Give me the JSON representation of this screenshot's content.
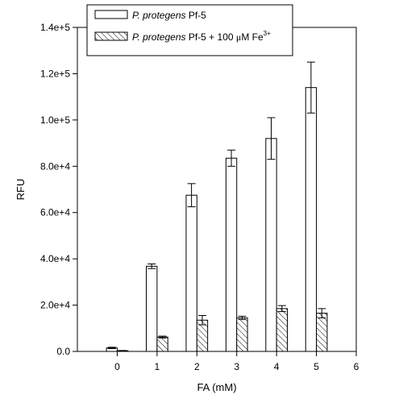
{
  "chart_data": {
    "type": "bar",
    "title": "",
    "xlabel": "FA (mM)",
    "ylabel": "RFU",
    "xlim": [
      -1,
      6
    ],
    "ylim": [
      0,
      140000
    ],
    "x_ticks": [
      "0",
      "1",
      "2",
      "3",
      "4",
      "5",
      "6"
    ],
    "y_ticks": [
      {
        "value": 0,
        "label": "0.0"
      },
      {
        "value": 20000,
        "label": "2.0e+4"
      },
      {
        "value": 40000,
        "label": "4.0e+4"
      },
      {
        "value": 60000,
        "label": "6.0e+4"
      },
      {
        "value": 80000,
        "label": "8.0e+4"
      },
      {
        "value": 100000,
        "label": "1.0e+5"
      },
      {
        "value": 120000,
        "label": "1.2e+5"
      },
      {
        "value": 140000,
        "label": "1.4e+5"
      }
    ],
    "categories": [
      0,
      1,
      2,
      3,
      4,
      5
    ],
    "legend": {
      "position": "top",
      "entries": [
        {
          "italic": "P. protegens",
          "text": " Pf-5",
          "pattern": "open"
        },
        {
          "italic": "P. protegens",
          "text": " Pf-5 + 100 ",
          "mu": "μ",
          "unit": "M Fe",
          "sup": "3+",
          "pattern": "hatched"
        }
      ]
    },
    "series": [
      {
        "pattern": "open",
        "values": [
          1500,
          36800,
          67500,
          83500,
          92000,
          114000
        ],
        "errors": [
          300,
          1000,
          5000,
          3500,
          9000,
          11000
        ]
      },
      {
        "pattern": "hatched",
        "values": [
          300,
          6200,
          13500,
          14500,
          18500,
          16500
        ],
        "errors": [
          100,
          400,
          2000,
          700,
          1300,
          2000
        ]
      }
    ],
    "grid": false
  }
}
